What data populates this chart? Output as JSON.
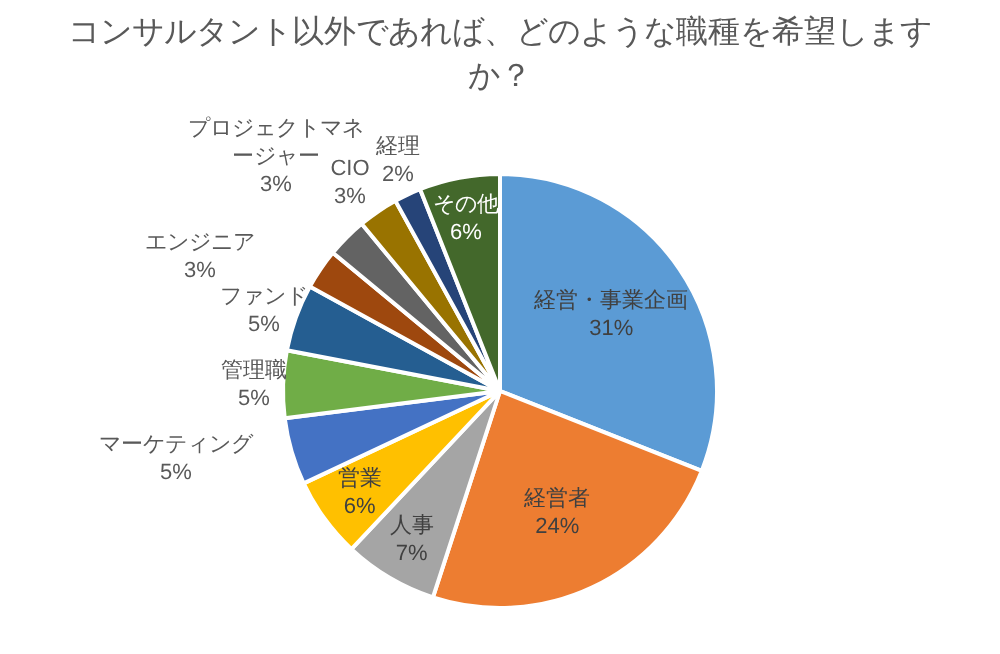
{
  "chart_data": {
    "type": "pie",
    "title": "コンサルタント以外であれば、どのような職種を希望しますか？",
    "categories": [
      "経営・事業企画",
      "経営者",
      "人事",
      "営業",
      "マーケティング",
      "管理職",
      "ファンド",
      "エンジニア",
      "プロジェクトマネージャー",
      "CIO",
      "経理",
      "その他"
    ],
    "values": [
      31,
      24,
      7,
      6,
      5,
      5,
      5,
      3,
      3,
      3,
      2,
      6
    ],
    "value_labels": [
      "31%",
      "24%",
      "7%",
      "6%",
      "5%",
      "5%",
      "5%",
      "3%",
      "3%",
      "3%",
      "2%",
      "6%"
    ],
    "colors": [
      "#5b9bd5",
      "#ed7d31",
      "#a5a5a5",
      "#ffc000",
      "#4472c4",
      "#70ad47",
      "#255e91",
      "#9e480e",
      "#636363",
      "#997300",
      "#264478",
      "#43682b"
    ],
    "legend": false
  }
}
